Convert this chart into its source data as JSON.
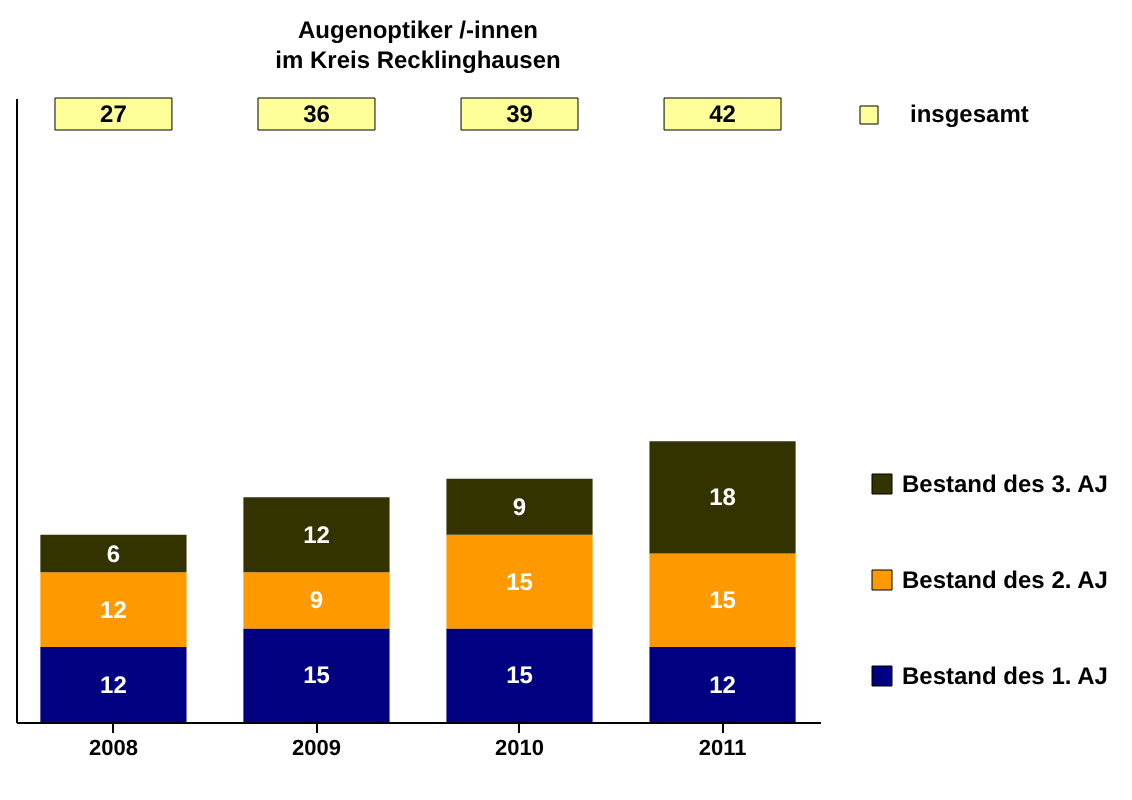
{
  "chart_data": {
    "type": "bar",
    "title": [
      "Augenoptiker /-innen",
      "im Kreis Recklinghausen"
    ],
    "categories": [
      "2008",
      "2009",
      "2010",
      "2011"
    ],
    "stacked": true,
    "series": [
      {
        "name": "Bestand des 1. AJ",
        "color": "#000080",
        "values": [
          12,
          15,
          15,
          12
        ]
      },
      {
        "name": "Bestand des 2. AJ",
        "color": "#ff9900",
        "values": [
          12,
          9,
          15,
          15
        ]
      },
      {
        "name": "Bestand des 3. AJ",
        "color": "#333300",
        "values": [
          6,
          12,
          9,
          18
        ]
      }
    ],
    "annotations": [
      "insgesamt",
      "27",
      "36",
      "39",
      "42"
    ],
    "data_labels": true,
    "ylim": [
      0,
      100
    ],
    "tick_labels": "x",
    "grid": false,
    "legend": "right"
  }
}
